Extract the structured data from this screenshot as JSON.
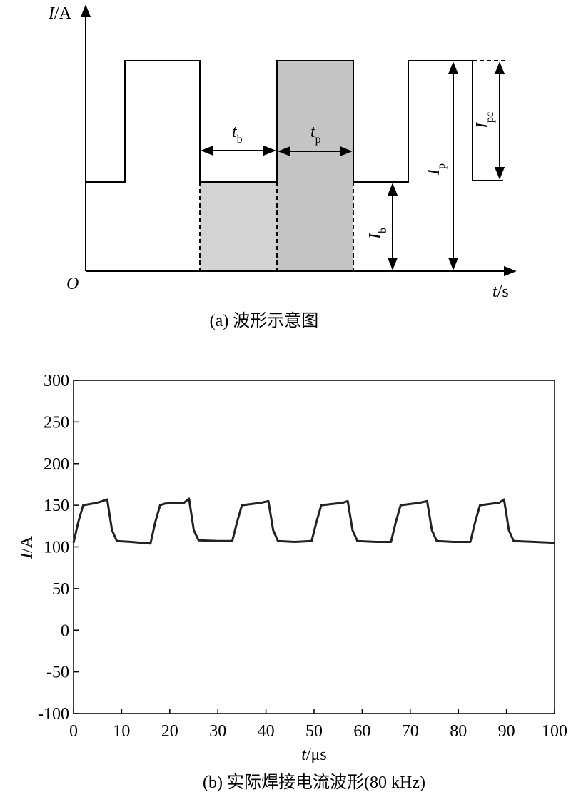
{
  "diagram": {
    "y_axis_label": {
      "italic": "I",
      "rest": "/A"
    },
    "origin_label": "O",
    "x_axis_label": {
      "italic": "t",
      "rest": "/s"
    },
    "base_time_label": {
      "main": "t",
      "sub": "b"
    },
    "peak_time_label": {
      "main": "t",
      "sub": "p"
    },
    "base_current_label": {
      "main": "I",
      "sub": "b"
    },
    "peak_current_label": {
      "main": "I",
      "sub": "p"
    },
    "pulse_current_label": {
      "main": "I",
      "sub": "pc"
    },
    "caption": "(a) 波形示意图"
  },
  "chart_data": {
    "type": "line",
    "x": [
      0,
      1,
      2,
      5,
      7,
      8,
      9,
      12,
      16,
      17,
      18,
      19,
      23,
      24,
      25,
      26,
      30,
      33,
      34,
      35,
      39,
      40.5,
      41.5,
      42.5,
      46,
      49.5,
      50.5,
      51.5,
      56,
      57,
      58,
      59,
      63,
      66,
      67,
      68,
      72,
      73.5,
      74.5,
      75.5,
      79,
      82.5,
      83.5,
      84.5,
      88.5,
      89.5,
      90.5,
      91.5,
      96,
      100
    ],
    "values": [
      105,
      130,
      150,
      153,
      157,
      120,
      107,
      106,
      104,
      130,
      150,
      152,
      153,
      158,
      120,
      108,
      107,
      107,
      130,
      150,
      153,
      155,
      120,
      107,
      106,
      107,
      130,
      150,
      153,
      155,
      120,
      107,
      106,
      106,
      130,
      150,
      153,
      155,
      120,
      107,
      106,
      106,
      130,
      150,
      153,
      157,
      120,
      107,
      106,
      105
    ],
    "color": "#222222",
    "xlim": [
      0,
      100
    ],
    "ylim": [
      -100,
      300
    ],
    "xticks": [
      0,
      10,
      20,
      30,
      40,
      50,
      60,
      70,
      80,
      90,
      100
    ],
    "yticks": [
      -100,
      -50,
      0,
      50,
      100,
      150,
      200,
      250,
      300
    ],
    "xlabel": {
      "italic": "t",
      "rest": "/μs"
    },
    "ylabel": {
      "italic": "I",
      "rest": "/A"
    },
    "caption": "(b) 实际焊接电流波形(80 kHz)"
  }
}
